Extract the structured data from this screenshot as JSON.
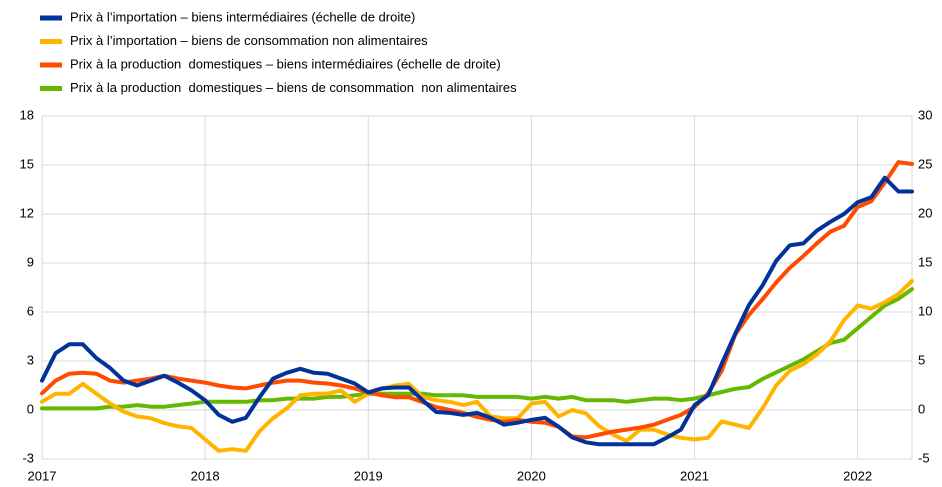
{
  "chart_data": {
    "type": "line",
    "categories": [
      "2017",
      null,
      null,
      null,
      null,
      null,
      null,
      null,
      null,
      null,
      null,
      null,
      "2018",
      null,
      null,
      null,
      null,
      null,
      null,
      null,
      null,
      null,
      null,
      null,
      "2019",
      null,
      null,
      null,
      null,
      null,
      null,
      null,
      null,
      null,
      null,
      null,
      "2020",
      null,
      null,
      null,
      null,
      null,
      null,
      null,
      null,
      null,
      null,
      null,
      "2021",
      null,
      null,
      null,
      null,
      null,
      null,
      null,
      null,
      null,
      null,
      null,
      "2022",
      null,
      null,
      null,
      null
    ],
    "series": [
      {
        "name": "Prix à l’importation – biens intermédiaires (échelle de droite)",
        "color": "#003299",
        "axis": "y2",
        "values": [
          3.0,
          5.8,
          6.7,
          6.7,
          5.3,
          4.3,
          3.0,
          2.5,
          3.0,
          3.5,
          2.8,
          2.0,
          1.0,
          -0.5,
          -1.2,
          -0.8,
          1.3,
          3.2,
          3.8,
          4.2,
          3.8,
          3.7,
          3.2,
          2.7,
          1.8,
          2.2,
          2.3,
          2.3,
          1.0,
          -0.2,
          -0.3,
          -0.5,
          -0.3,
          -0.8,
          -1.5,
          -1.3,
          -1.0,
          -0.8,
          -1.7,
          -2.8,
          -3.3,
          -3.5,
          -3.5,
          -3.5,
          -3.5,
          -3.5,
          -2.8,
          -2.0,
          0.5,
          1.5,
          4.7,
          7.8,
          10.7,
          12.7,
          15.2,
          16.8,
          17.0,
          18.3,
          19.2,
          20.0,
          21.2,
          21.7,
          23.7,
          22.3,
          22.3
        ]
      },
      {
        "name": "Prix à l’importation – biens de consommation non alimentaires",
        "color": "#ffb400",
        "values": [
          0.5,
          1.0,
          1.0,
          1.6,
          1.0,
          0.4,
          -0.1,
          -0.4,
          -0.5,
          -0.8,
          -1.0,
          -1.1,
          -1.8,
          -2.5,
          -2.4,
          -2.5,
          -1.3,
          -0.5,
          0.1,
          0.9,
          1.0,
          1.0,
          1.2,
          0.5,
          1.0,
          1.3,
          1.5,
          1.6,
          0.8,
          0.6,
          0.5,
          0.3,
          0.5,
          -0.4,
          -0.5,
          -0.5,
          0.4,
          0.5,
          -0.4,
          0.0,
          -0.2,
          -1.0,
          -1.5,
          -1.9,
          -1.2,
          -1.2,
          -1.5,
          -1.7,
          -1.8,
          -1.7,
          -0.7,
          -0.9,
          -1.1,
          0.1,
          1.5,
          2.4,
          2.8,
          3.4,
          4.2,
          5.5,
          6.4,
          6.2,
          6.6,
          7.1,
          7.9
        ]
      },
      {
        "name": "Prix à la production  domestiques – biens intermédiaires (échelle de droite)",
        "color": "#ff4b00",
        "axis": "y2",
        "values": [
          1.7,
          3.0,
          3.7,
          3.8,
          3.7,
          3.0,
          2.8,
          3.0,
          3.2,
          3.5,
          3.2,
          3.0,
          2.8,
          2.5,
          2.3,
          2.2,
          2.5,
          2.8,
          3.0,
          3.0,
          2.8,
          2.7,
          2.5,
          2.2,
          1.8,
          1.5,
          1.3,
          1.3,
          0.8,
          0.3,
          0.0,
          -0.3,
          -0.7,
          -1.0,
          -1.2,
          -1.0,
          -1.2,
          -1.3,
          -1.7,
          -2.7,
          -2.8,
          -2.5,
          -2.2,
          -2.0,
          -1.8,
          -1.5,
          -1.0,
          -0.5,
          0.3,
          1.7,
          4.0,
          7.7,
          9.7,
          11.3,
          13.0,
          14.5,
          15.7,
          17.0,
          18.2,
          18.8,
          20.7,
          21.3,
          23.2,
          25.3,
          25.1
        ]
      },
      {
        "name": "Prix à la production  domestiques – biens de consommation  non alimentaires",
        "color": "#65b800",
        "values": [
          0.1,
          0.1,
          0.1,
          0.1,
          0.1,
          0.2,
          0.2,
          0.3,
          0.2,
          0.2,
          0.3,
          0.4,
          0.5,
          0.5,
          0.5,
          0.5,
          0.6,
          0.6,
          0.7,
          0.7,
          0.7,
          0.8,
          0.8,
          0.9,
          1.0,
          1.0,
          1.0,
          1.0,
          1.0,
          0.9,
          0.9,
          0.9,
          0.8,
          0.8,
          0.8,
          0.8,
          0.7,
          0.8,
          0.7,
          0.8,
          0.6,
          0.6,
          0.6,
          0.5,
          0.6,
          0.7,
          0.7,
          0.6,
          0.7,
          0.9,
          1.1,
          1.3,
          1.4,
          1.9,
          2.3,
          2.7,
          3.1,
          3.6,
          4.1,
          4.3,
          5.0,
          5.7,
          6.4,
          6.8,
          7.4
        ]
      }
    ],
    "ylim": [
      -3,
      18
    ],
    "yticks": [
      -3,
      0,
      3,
      6,
      9,
      12,
      15,
      18
    ],
    "y2lim": [
      -5,
      30
    ],
    "y2ticks": [
      -5,
      0,
      5,
      10,
      15,
      20,
      25,
      30
    ],
    "grid": true,
    "legend": "top-left"
  }
}
